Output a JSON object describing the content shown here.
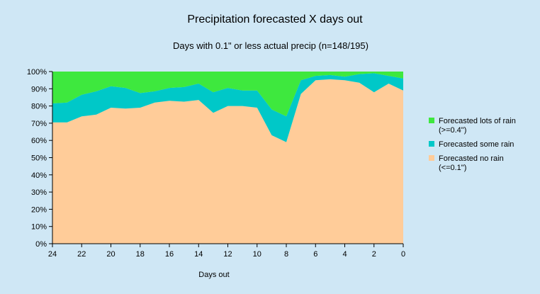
{
  "chart_data": {
    "type": "area",
    "title": "Precipitation forecasted X days out",
    "subtitle": "Days with 0.1\" or less actual precip (n=148/195)",
    "xlabel": "Days out",
    "ylabel": "",
    "stacked": true,
    "x": [
      24,
      23,
      22,
      21,
      20,
      19,
      18,
      17,
      16,
      15,
      14,
      13,
      12,
      11,
      10,
      9,
      8,
      7,
      6,
      5,
      4,
      3,
      2,
      1,
      0
    ],
    "xlim": [
      24,
      0
    ],
    "x_ticks": [
      "24",
      "22",
      "20",
      "18",
      "16",
      "14",
      "12",
      "10",
      "8",
      "6",
      "4",
      "2",
      "0"
    ],
    "ylim": [
      0,
      100
    ],
    "y_ticks": [
      "0%",
      "10%",
      "20%",
      "30%",
      "40%",
      "50%",
      "60%",
      "70%",
      "80%",
      "90%",
      "100%"
    ],
    "grid": false,
    "legend_position": "right",
    "series": [
      {
        "name": "Forecasted no rain (<=0.1\")",
        "legend_lines": [
          "Forecasted no rain",
          "(<=0.1\")"
        ],
        "color": "#ffcc99",
        "values": [
          70.5,
          70.5,
          74,
          75,
          79,
          78.5,
          79,
          82,
          83,
          82.5,
          83.5,
          76,
          80,
          80,
          79,
          63,
          59,
          87,
          95,
          95.5,
          95,
          93.5,
          88,
          93,
          89
        ]
      },
      {
        "name": "Forecasted some rain",
        "legend_lines": [
          "Forecasted some rain"
        ],
        "color": "#00c8c8",
        "values": [
          11,
          11.5,
          12.5,
          13.5,
          12.5,
          12,
          8.5,
          6.5,
          7.5,
          8.5,
          9.5,
          12,
          10.5,
          9,
          10,
          15,
          15,
          8,
          2.5,
          2.5,
          2,
          5,
          11,
          4.5,
          7
        ]
      },
      {
        "name": "Forecasted lots of rain (>=0.4\")",
        "legend_lines": [
          "Forecasted lots of rain",
          "(>=0.4\")"
        ],
        "color": "#3ee83e",
        "values": [
          18.5,
          18,
          13.5,
          11.5,
          8.5,
          9.5,
          12.5,
          11.5,
          9.5,
          9,
          7,
          12,
          9.5,
          11,
          11,
          22,
          26,
          5,
          2.5,
          2,
          3,
          1.5,
          1,
          2.5,
          4
        ]
      }
    ]
  }
}
